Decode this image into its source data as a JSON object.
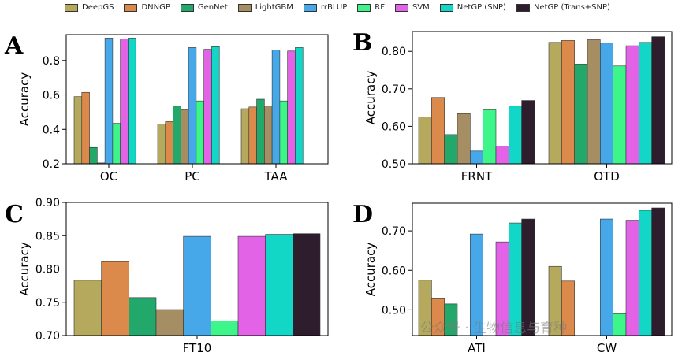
{
  "legend": [
    {
      "name": "DeepGS",
      "color": "#b5a95e"
    },
    {
      "name": "DNNGP",
      "color": "#dc8a4b"
    },
    {
      "name": "GenNet",
      "color": "#22a86a"
    },
    {
      "name": "LightGBM",
      "color": "#a58e64"
    },
    {
      "name": "rrBLUP",
      "color": "#46a8e8"
    },
    {
      "name": "RF",
      "color": "#3ef58a"
    },
    {
      "name": "SVM",
      "color": "#e363e6"
    },
    {
      "name": "NetGP (SNP)",
      "color": "#12d6c6"
    },
    {
      "name": "NetGP (Trans+SNP)",
      "color": "#2e1d2c"
    }
  ],
  "watermark": "公众号 · 生物信息与育种",
  "chart_data": [
    {
      "panel": "A",
      "type": "bar",
      "ylabel": "Accuracy",
      "categories": [
        "OC",
        "PC",
        "TAA"
      ],
      "ylim": [
        0.2,
        0.95
      ],
      "yticks": [
        0.2,
        0.4,
        0.6,
        0.8
      ],
      "series": [
        {
          "name": "DeepGS",
          "values": [
            0.59,
            0.43,
            0.52
          ]
        },
        {
          "name": "DNNGP",
          "values": [
            0.615,
            0.445,
            0.53
          ]
        },
        {
          "name": "GenNet",
          "values": [
            0.295,
            0.535,
            0.575
          ]
        },
        {
          "name": "LightGBM",
          "values": [
            0.205,
            0.515,
            0.535
          ]
        },
        {
          "name": "rrBLUP",
          "values": [
            0.93,
            0.875,
            0.86
          ]
        },
        {
          "name": "RF",
          "values": [
            0.435,
            0.565,
            0.565
          ]
        },
        {
          "name": "SVM",
          "values": [
            0.925,
            0.865,
            0.855
          ]
        },
        {
          "name": "NetGP (SNP)",
          "values": [
            0.93,
            0.88,
            0.875
          ]
        },
        {
          "name": "NetGP (Trans+SNP)",
          "values": [
            null,
            null,
            null
          ]
        }
      ]
    },
    {
      "panel": "B",
      "type": "bar",
      "ylabel": "Accuracy",
      "categories": [
        "FRNT",
        "OTD"
      ],
      "ylim": [
        0.5,
        0.853
      ],
      "yticks": [
        0.5,
        0.6,
        0.7,
        0.8
      ],
      "series": [
        {
          "name": "DeepGS",
          "values": [
            0.625,
            0.824
          ]
        },
        {
          "name": "DNNGP",
          "values": [
            0.677,
            0.829
          ]
        },
        {
          "name": "GenNet",
          "values": [
            0.578,
            0.766
          ]
        },
        {
          "name": "LightGBM",
          "values": [
            0.634,
            0.831
          ]
        },
        {
          "name": "rrBLUP",
          "values": [
            0.534,
            0.822
          ]
        },
        {
          "name": "RF",
          "values": [
            0.644,
            0.761
          ]
        },
        {
          "name": "SVM",
          "values": [
            0.547,
            0.815
          ]
        },
        {
          "name": "NetGP (SNP)",
          "values": [
            0.654,
            0.824
          ]
        },
        {
          "name": "NetGP (Trans+SNP)",
          "values": [
            0.669,
            0.839
          ]
        }
      ]
    },
    {
      "panel": "C",
      "type": "bar",
      "ylabel": "Accuracy",
      "categories": [
        "FT10"
      ],
      "ylim": [
        0.7,
        0.9
      ],
      "yticks": [
        0.7,
        0.75,
        0.8,
        0.85,
        0.9
      ],
      "series": [
        {
          "name": "DeepGS",
          "values": [
            0.783
          ]
        },
        {
          "name": "DNNGP",
          "values": [
            0.811
          ]
        },
        {
          "name": "GenNet",
          "values": [
            0.757
          ]
        },
        {
          "name": "LightGBM",
          "values": [
            0.739
          ]
        },
        {
          "name": "rrBLUP",
          "values": [
            0.849
          ]
        },
        {
          "name": "RF",
          "values": [
            0.722
          ]
        },
        {
          "name": "SVM",
          "values": [
            0.849
          ]
        },
        {
          "name": "NetGP (SNP)",
          "values": [
            0.852
          ]
        },
        {
          "name": "NetGP (Trans+SNP)",
          "values": [
            0.853
          ]
        }
      ]
    },
    {
      "panel": "D",
      "type": "bar",
      "ylabel": "Accuracy",
      "categories": [
        "ATI",
        "CW"
      ],
      "ylim": [
        0.435,
        0.77
      ],
      "yticks": [
        0.5,
        0.6,
        0.7
      ],
      "series": [
        {
          "name": "DeepGS",
          "values": [
            0.575,
            0.61
          ]
        },
        {
          "name": "DNNGP",
          "values": [
            0.53,
            0.573
          ]
        },
        {
          "name": "GenNet",
          "values": [
            0.515,
            null
          ]
        },
        {
          "name": "LightGBM",
          "values": [
            null,
            null
          ]
        },
        {
          "name": "rrBLUP",
          "values": [
            0.692,
            0.73
          ]
        },
        {
          "name": "RF",
          "values": [
            null,
            0.49
          ]
        },
        {
          "name": "SVM",
          "values": [
            0.672,
            0.727
          ]
        },
        {
          "name": "NetGP (SNP)",
          "values": [
            0.72,
            0.752
          ]
        },
        {
          "name": "NetGP (Trans+SNP)",
          "values": [
            0.73,
            0.758
          ]
        }
      ]
    }
  ]
}
